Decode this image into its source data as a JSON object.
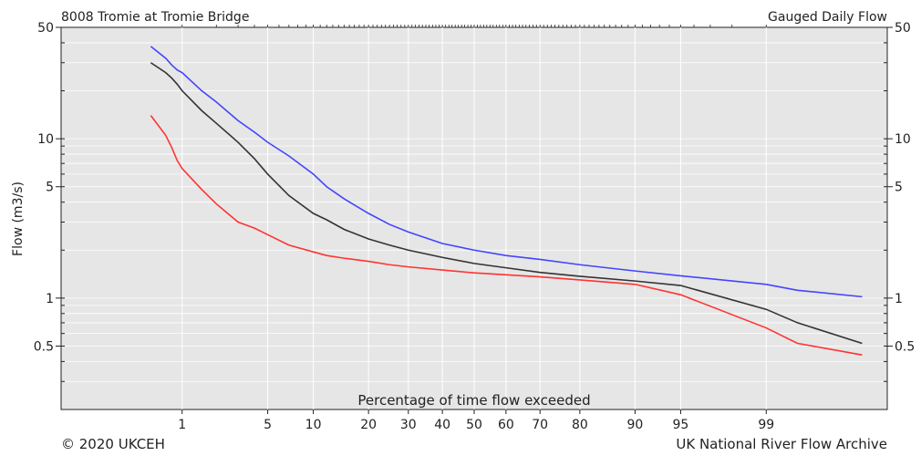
{
  "chart_data": {
    "type": "line",
    "title_left": "8008 Tromie at Tromie Bridge",
    "title_right": "Gauged Daily Flow",
    "xlabel": "Percentage of time flow exceeded",
    "ylabel": "Flow (m3/s)",
    "x_scale": "probability (normal)",
    "y_scale": "log",
    "xlim": [
      0.05,
      99.95
    ],
    "ylim": [
      0.2,
      50
    ],
    "x_ticks": [
      1,
      5,
      10,
      20,
      30,
      40,
      50,
      60,
      70,
      80,
      90,
      95,
      99
    ],
    "x_tick_labels": [
      "1",
      "5",
      "10",
      "20",
      "30",
      "40",
      "50",
      "60",
      "70",
      "80",
      "90",
      "95",
      "99"
    ],
    "y_ticks": [
      0.5,
      1,
      5,
      10,
      50
    ],
    "y_tick_labels": [
      "0.5",
      "1",
      "5",
      "10",
      "50"
    ],
    "y_ticks_right": [
      0.5,
      1,
      5,
      10,
      50
    ],
    "y_tick_labels_right": [
      "0.5",
      "1",
      "5",
      "10",
      "50"
    ],
    "grid": true,
    "series": [
      {
        "color": "#4444ff",
        "x": [
          0.5,
          0.7,
          0.8,
          0.9,
          1,
          1.5,
          2,
          3,
          4,
          5,
          7,
          10,
          12,
          15,
          20,
          25,
          30,
          40,
          50,
          60,
          70,
          80,
          90,
          95,
          99,
          99.5,
          99.9
        ],
        "y": [
          38,
          32,
          29,
          27,
          26,
          20,
          17,
          13,
          11,
          9.5,
          7.8,
          6.0,
          5.0,
          4.2,
          3.4,
          2.9,
          2.6,
          2.2,
          2.0,
          1.85,
          1.75,
          1.62,
          1.48,
          1.38,
          1.22,
          1.12,
          1.02
        ]
      },
      {
        "color": "#333333",
        "x": [
          0.5,
          0.7,
          0.8,
          0.9,
          1,
          1.5,
          2,
          3,
          4,
          5,
          7,
          10,
          12,
          15,
          20,
          25,
          30,
          40,
          50,
          60,
          70,
          80,
          90,
          95,
          99,
          99.5,
          99.9
        ],
        "y": [
          30,
          26,
          24,
          22,
          20,
          15,
          12.5,
          9.5,
          7.5,
          6.0,
          4.4,
          3.4,
          3.1,
          2.7,
          2.35,
          2.15,
          2.0,
          1.8,
          1.65,
          1.55,
          1.45,
          1.37,
          1.28,
          1.2,
          0.85,
          0.7,
          0.52
        ]
      },
      {
        "color": "#ff3333",
        "x": [
          0.5,
          0.7,
          0.8,
          0.9,
          1,
          1.5,
          2,
          3,
          4,
          5,
          7,
          10,
          12,
          15,
          20,
          25,
          30,
          40,
          50,
          60,
          70,
          80,
          90,
          95,
          99,
          99.5,
          99.9
        ],
        "y": [
          14,
          10.5,
          8.8,
          7.3,
          6.5,
          4.8,
          3.9,
          3.0,
          2.75,
          2.5,
          2.15,
          1.95,
          1.85,
          1.78,
          1.7,
          1.62,
          1.57,
          1.5,
          1.44,
          1.4,
          1.36,
          1.3,
          1.22,
          1.05,
          0.65,
          0.52,
          0.44
        ]
      }
    ]
  },
  "footer": {
    "copyright": "© 2020 UKCEH",
    "archive": "UK National River Flow Archive"
  }
}
